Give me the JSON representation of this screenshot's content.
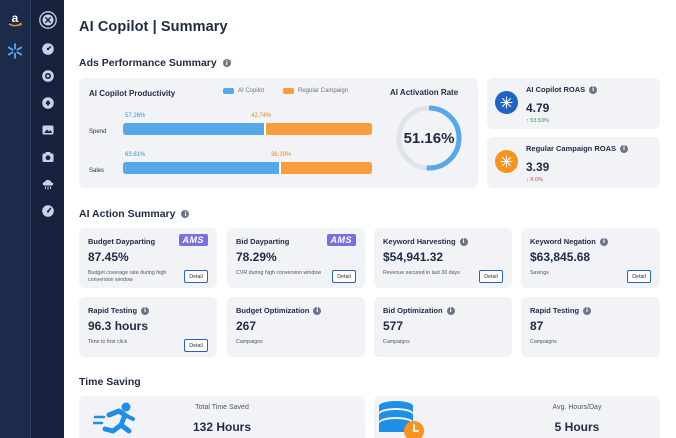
{
  "app": {
    "title": "AI Copilot | Summary",
    "brand_icon": "amazon-logo-icon",
    "secondary_brand_icon": "spark-icon"
  },
  "sidebar": {
    "items": [
      {
        "icon": "copilot-icon"
      },
      {
        "icon": "dashboard-gauge-icon"
      },
      {
        "icon": "target-settings-icon"
      },
      {
        "icon": "shield-gear-icon"
      },
      {
        "icon": "image-card-icon"
      },
      {
        "icon": "camera-icon"
      },
      {
        "icon": "cloud-network-icon"
      },
      {
        "icon": "speedometer-icon"
      }
    ]
  },
  "ads_performance": {
    "title": "Ads Performance Summary",
    "productivity": {
      "title": "AI Copilot Productivity",
      "legend": [
        {
          "label": "AI Copilot",
          "color": "#56a8ea"
        },
        {
          "label": "Regular Campaign",
          "color": "#f89e3c"
        }
      ],
      "rows": [
        {
          "label": "Spend",
          "ai_copilot_pct": 57.26,
          "regular_pct": 42.74,
          "ai_copilot_text": "57.26%",
          "regular_text": "42.74%"
        },
        {
          "label": "Sales",
          "ai_copilot_pct": 63.61,
          "regular_pct": 36.39,
          "ai_copilot_text": "63.61%",
          "regular_text": "36.39%"
        }
      ]
    },
    "activation_rate": {
      "title": "AI Activation Rate",
      "value": 51.16,
      "value_text": "51.16%"
    },
    "roas": [
      {
        "title": "AI Copilot ROAS",
        "value": "4.79",
        "change": "↑ 53.53%",
        "change_color": "#1e9e55",
        "circle_color": "#1f63c6",
        "icon": "sparkle-icon"
      },
      {
        "title": "Regular Campaign ROAS",
        "value": "3.39",
        "change": "↓ 8.0%",
        "change_color": "#d94b3d",
        "circle_color": "#f7941d",
        "icon": "sparkle-icon"
      }
    ]
  },
  "ai_action": {
    "title": "AI Action Summary",
    "cards": [
      {
        "title": "Budget Dayparting",
        "badge": "AMS",
        "value": "87.45%",
        "desc": "Budget coverage rate during high conversion window",
        "button": "Detail"
      },
      {
        "title": "Bid Dayparting",
        "badge": "AMS",
        "value": "78.29%",
        "desc": "CVR during high conversion window",
        "button": "Detail"
      },
      {
        "title": "Keyword Harvesting",
        "value": "$54,941.32",
        "desc": "Revenue secured in last 30 days",
        "button": "Detail"
      },
      {
        "title": "Keyword Negation",
        "value": "$63,845.68",
        "desc": "Savings",
        "button": "Detail"
      },
      {
        "title": "Rapid Testing",
        "value": "96.3 hours",
        "desc": "Time to first click",
        "button": "Detail"
      },
      {
        "title": "Budget Optimization",
        "value": "267",
        "desc": "Campaigns"
      },
      {
        "title": "Bid Optimization",
        "value": "577",
        "desc": "Campaigns"
      },
      {
        "title": "Rapid Testing",
        "value": "87",
        "desc": "Campaigns"
      }
    ]
  },
  "time_saving": {
    "title": "Time Saving",
    "items": [
      {
        "label": "Total Time Saved",
        "value": "132 Hours",
        "icon": "running-person-icon"
      },
      {
        "label": "Avg. Hours/Day",
        "value": "5 Hours",
        "icon": "coins-clock-icon"
      }
    ]
  }
}
